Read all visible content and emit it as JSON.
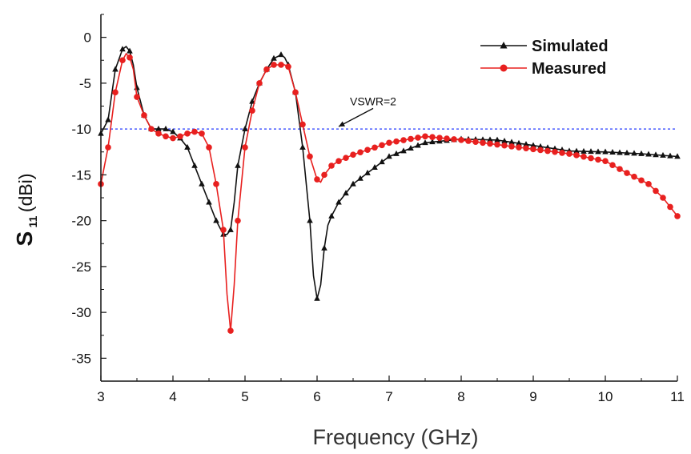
{
  "chart_data": {
    "type": "line",
    "xlabel": "Frequency (GHz)",
    "ylabel": {
      "main": "S",
      "sub": "11",
      "unit": " (dBi)"
    },
    "xlim": [
      3,
      11
    ],
    "ylim": [
      -37.5,
      2.5
    ],
    "xticks": [
      3,
      4,
      5,
      6,
      7,
      8,
      9,
      10,
      11
    ],
    "yticks": [
      0,
      -5,
      -10,
      -15,
      -20,
      -25,
      -30,
      -35
    ],
    "legend_position": "top-right",
    "reference_line": {
      "y": -10,
      "color": "#4a5cff"
    },
    "annotation": {
      "text": "VSWR=2",
      "x": 6.5,
      "y": -7.4,
      "arrow_to": [
        6.3,
        -9.9
      ]
    },
    "series": [
      {
        "name": "Simulated",
        "color": "#111111",
        "marker": "triangle",
        "x": [
          3.0,
          3.1,
          3.2,
          3.3,
          3.35,
          3.4,
          3.45,
          3.5,
          3.6,
          3.7,
          3.8,
          3.9,
          4.0,
          4.1,
          4.2,
          4.3,
          4.4,
          4.5,
          4.6,
          4.7,
          4.75,
          4.8,
          4.85,
          4.9,
          5.0,
          5.1,
          5.2,
          5.3,
          5.4,
          5.5,
          5.55,
          5.6,
          5.7,
          5.8,
          5.9,
          5.95,
          6.0,
          6.05,
          6.1,
          6.15,
          6.2,
          6.3,
          6.5,
          7.0,
          7.5,
          8.0,
          8.5,
          9.0,
          9.5,
          10.0,
          10.5,
          11.0
        ],
        "y": [
          -10.5,
          -9.0,
          -3.5,
          -1.3,
          -1.0,
          -1.5,
          -3.0,
          -5.5,
          -8.5,
          -10.0,
          -10.0,
          -10.0,
          -10.3,
          -11.0,
          -12.0,
          -14.0,
          -16.0,
          -18.0,
          -20.0,
          -21.5,
          -21.5,
          -21.0,
          -18.0,
          -14.0,
          -10.0,
          -7.0,
          -5.0,
          -3.5,
          -2.3,
          -1.9,
          -2.2,
          -3.0,
          -6.0,
          -12.0,
          -20.0,
          -26.0,
          -28.5,
          -27.0,
          -23.0,
          -20.5,
          -19.5,
          -18.0,
          -16.0,
          -13.0,
          -11.5,
          -11.1,
          -11.2,
          -11.8,
          -12.4,
          -12.5,
          -12.7,
          -13.0
        ]
      },
      {
        "name": "Measured",
        "color": "#e8201f",
        "marker": "circle",
        "x": [
          3.0,
          3.1,
          3.2,
          3.3,
          3.35,
          3.4,
          3.45,
          3.5,
          3.6,
          3.7,
          3.8,
          3.9,
          4.0,
          4.1,
          4.2,
          4.3,
          4.4,
          4.5,
          4.6,
          4.7,
          4.75,
          4.8,
          4.85,
          4.9,
          5.0,
          5.1,
          5.2,
          5.3,
          5.4,
          5.5,
          5.55,
          5.6,
          5.7,
          5.8,
          5.9,
          6.0,
          6.05,
          6.1,
          6.2,
          6.3,
          6.5,
          7.0,
          7.5,
          8.0,
          8.5,
          9.0,
          9.5,
          10.0,
          10.3,
          10.6,
          10.8,
          11.0
        ],
        "y": [
          -16.0,
          -12.0,
          -6.0,
          -2.5,
          -1.8,
          -2.2,
          -3.5,
          -6.5,
          -8.5,
          -10.0,
          -10.5,
          -10.8,
          -11.0,
          -10.8,
          -10.5,
          -10.3,
          -10.5,
          -12.0,
          -16.0,
          -21.0,
          -28.0,
          -32.0,
          -27.0,
          -20.0,
          -12.0,
          -8.0,
          -5.0,
          -3.5,
          -3.0,
          -3.0,
          -3.0,
          -3.2,
          -6.0,
          -9.5,
          -13.0,
          -15.5,
          -15.8,
          -15.0,
          -14.0,
          -13.5,
          -12.8,
          -11.5,
          -10.8,
          -11.2,
          -11.7,
          -12.2,
          -12.7,
          -13.5,
          -14.8,
          -16.0,
          -17.5,
          -19.5
        ]
      }
    ]
  }
}
